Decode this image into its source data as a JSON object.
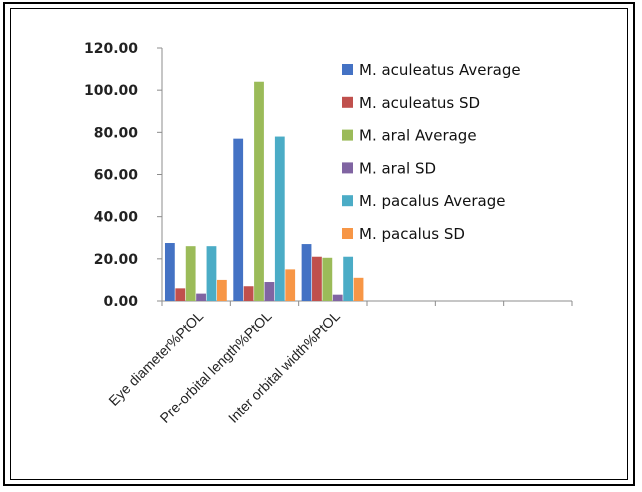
{
  "chart_data": {
    "type": "bar",
    "title": "",
    "xlabel": "",
    "ylabel": "",
    "ylim": [
      0,
      120
    ],
    "yticks": [
      "0.00",
      "20.00",
      "40.00",
      "60.00",
      "80.00",
      "100.00",
      "120.00"
    ],
    "categories": [
      "Eye diameter%PtOL",
      "Pre-orbital length%PtOL",
      "Inter orbital width%PtOL"
    ],
    "empty_slots": 3,
    "grid": false,
    "legend_position": "right",
    "series": [
      {
        "name": "M. aculeatus Average",
        "color": "#4472C4",
        "values": [
          27.5,
          77,
          27
        ]
      },
      {
        "name": "M. aculeatus SD",
        "color": "#C0504D",
        "values": [
          6,
          7,
          21
        ]
      },
      {
        "name": "M. aral Average",
        "color": "#9BBB59",
        "values": [
          26,
          104,
          20.5
        ]
      },
      {
        "name": "M. aral SD",
        "color": "#8064A2",
        "values": [
          3.5,
          9,
          3
        ]
      },
      {
        "name": "M. pacalus Average",
        "color": "#4BACC6",
        "values": [
          26,
          78,
          21
        ]
      },
      {
        "name": "M. pacalus SD",
        "color": "#F79646",
        "values": [
          10,
          15,
          11
        ]
      }
    ]
  }
}
